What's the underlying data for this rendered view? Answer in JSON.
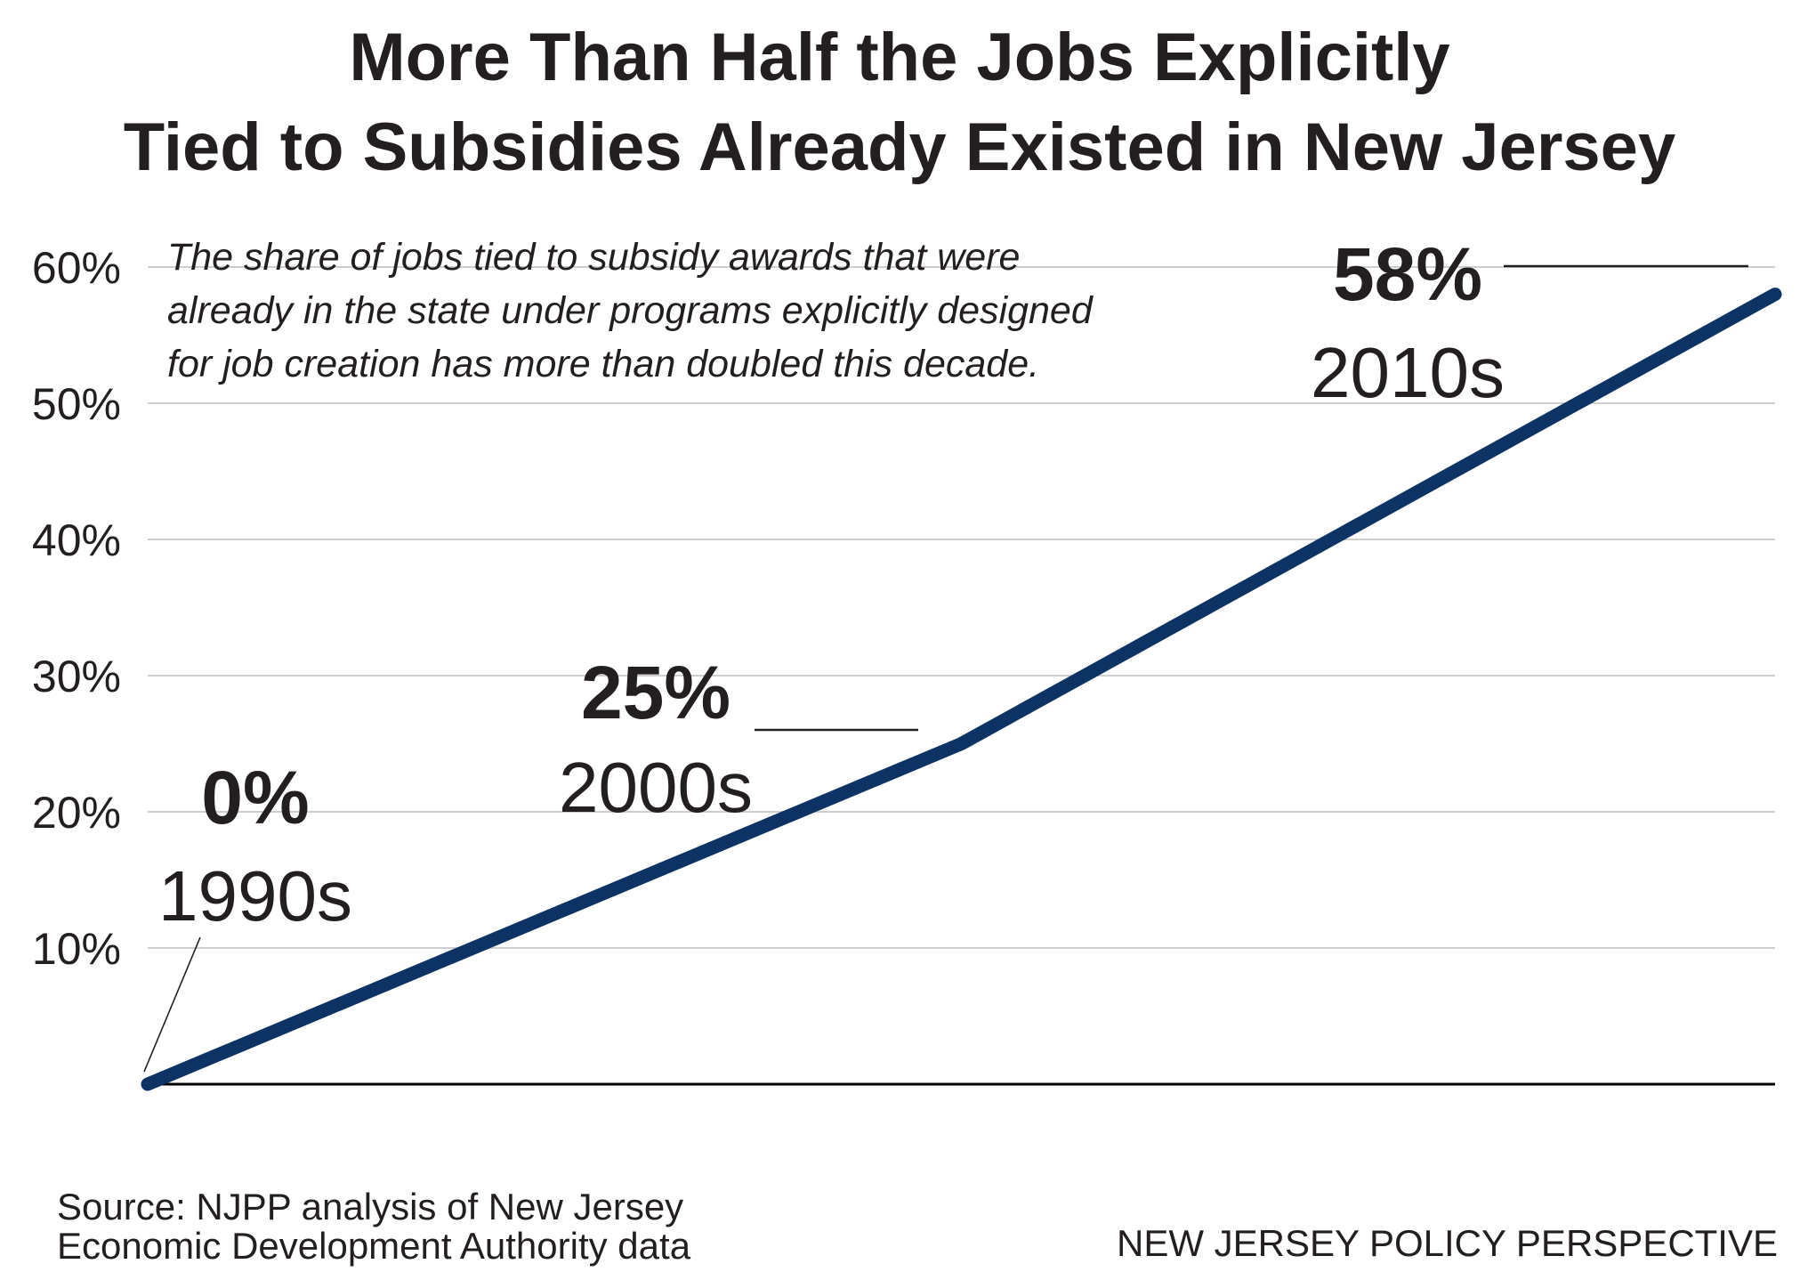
{
  "chart_data": {
    "type": "line",
    "title_lines": [
      "More Than Half the Jobs Explicitly",
      "Tied to Subsidies Already Existed in New Jersey"
    ],
    "annotation_lines": [
      "The share of jobs tied to subsidy awards that were",
      "already in the state under programs explicitly designed",
      "for job creation has more than doubled this decade."
    ],
    "categories": [
      "1990s",
      "2000s",
      "2010s"
    ],
    "values": [
      0,
      25,
      58
    ],
    "value_labels": [
      "0%",
      "25%",
      "58%"
    ],
    "y_ticks": [
      "10%",
      "20%",
      "30%",
      "40%",
      "50%",
      "60%"
    ],
    "y_tick_values": [
      10,
      20,
      30,
      40,
      50,
      60
    ],
    "ylim": [
      0,
      60
    ],
    "grid": true,
    "line_color": "#0d3364",
    "source_lines": [
      "Source: NJPP analysis of New Jersey",
      "Economic Development Authority data"
    ],
    "credit": "NEW JERSEY POLICY PERSPECTIVE"
  }
}
